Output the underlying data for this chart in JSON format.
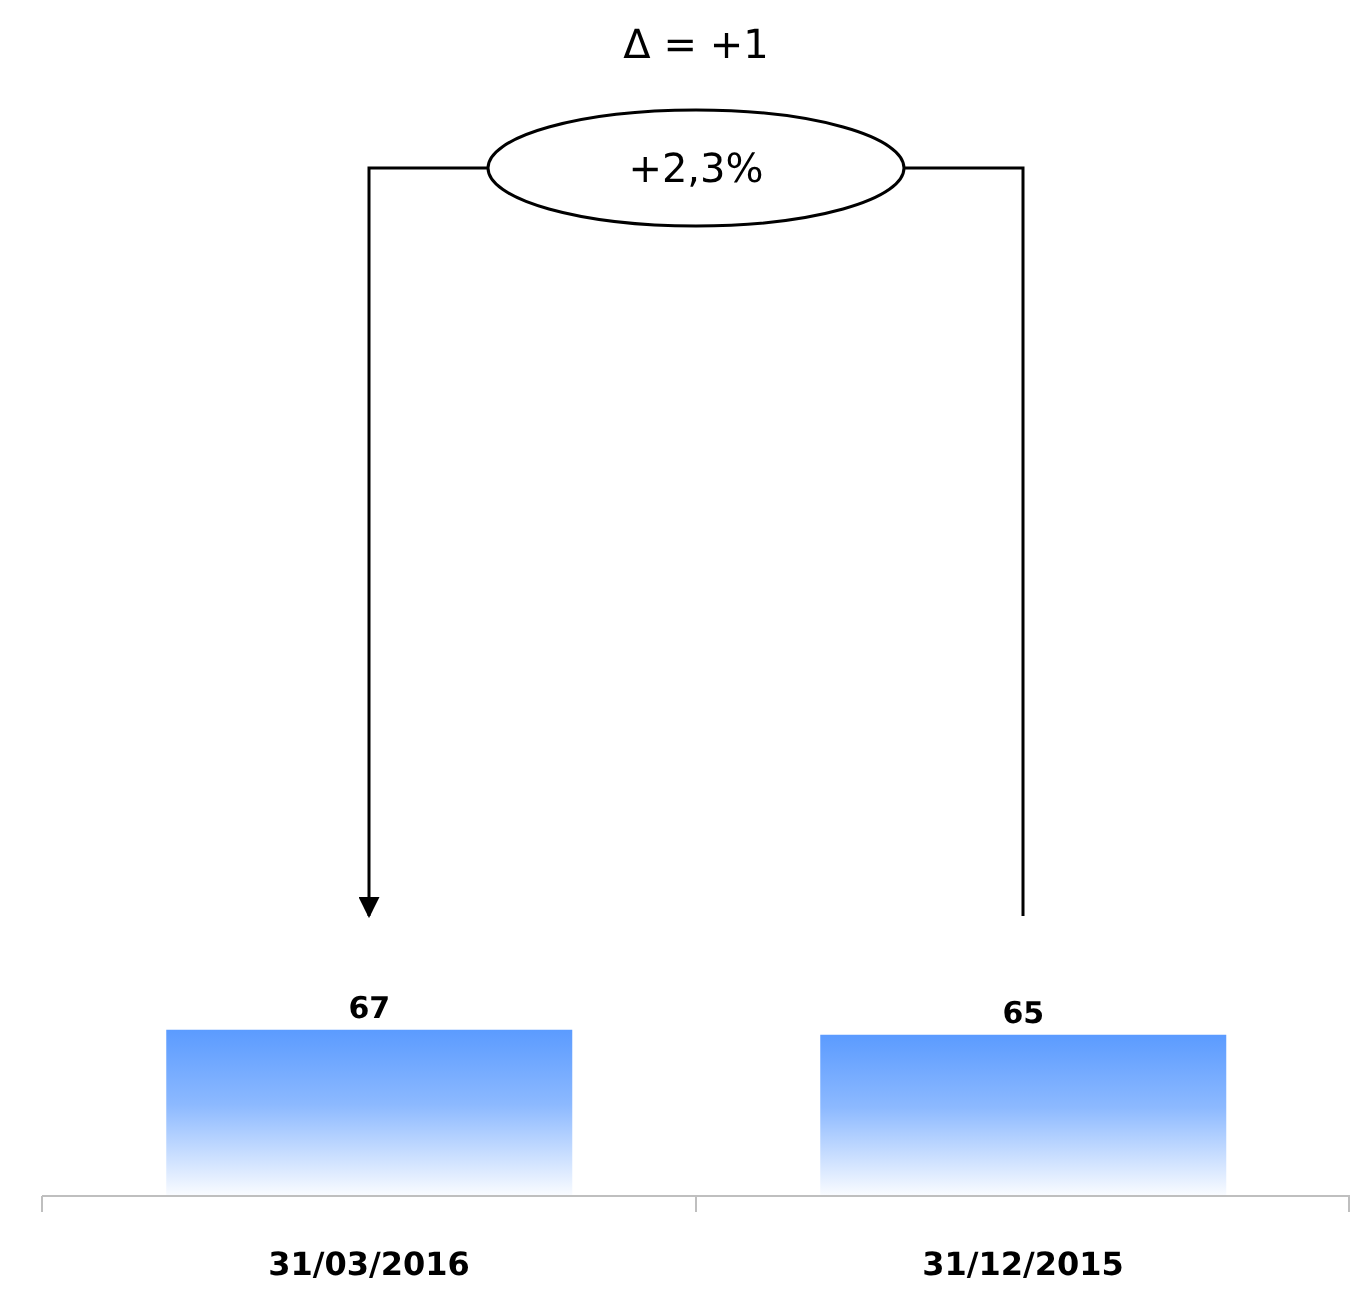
{
  "chart_data": {
    "type": "bar",
    "categories": [
      "31/03/2016",
      "31/12/2015"
    ],
    "values": [
      67,
      65
    ],
    "color": "#5b9bff",
    "data_labels": true,
    "annotations": [
      "Δ = +1",
      "+2,3%"
    ]
  }
}
